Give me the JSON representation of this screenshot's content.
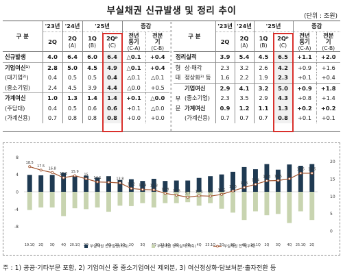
{
  "title": "부실채권 신규발생 및 정리 추이",
  "unit": "(단위 : 조원)",
  "left_table": {
    "gubun": "구 분",
    "years": [
      "'23년",
      "'24년",
      "'25년"
    ],
    "change_header": "증감",
    "cols": [
      {
        "q": "2Q",
        "tag": ""
      },
      {
        "q": "2Q",
        "tag": "(A)"
      },
      {
        "q": "1Q",
        "tag": "(B)"
      },
      {
        "q": "2Qᵖ",
        "tag": "(C)"
      },
      {
        "q": "전년 동기",
        "tag": "(C-A)"
      },
      {
        "q": "전분기",
        "tag": "(C-B)"
      }
    ],
    "rows": [
      {
        "label": "신규발생",
        "bold": true,
        "values": [
          "4.0",
          "6.4",
          "6.0",
          "6.4",
          "△0.1",
          "+0.4"
        ]
      },
      {
        "label": "기업여신¹⁾",
        "bold": true,
        "values": [
          "2.8",
          "5.0",
          "4.5",
          "4.9",
          "△0.1",
          "+0.4"
        ]
      },
      {
        "label": "(대기업²⁾)",
        "bold": false,
        "values": [
          "0.4",
          "0.5",
          "0.5",
          "0.4",
          "△0.1",
          "△0.1"
        ]
      },
      {
        "label": "(중소기업)",
        "bold": false,
        "values": [
          "2.4",
          "4.5",
          "3.9",
          "4.4",
          "△0.0",
          "+0.5"
        ]
      },
      {
        "label": "가계여신",
        "bold": true,
        "values": [
          "1.0",
          "1.3",
          "1.4",
          "1.4",
          "+0.1",
          "△0.0"
        ]
      },
      {
        "label": "(주담대)",
        "bold": false,
        "values": [
          "0.4",
          "0.5",
          "0.6",
          "0.6",
          "+0.1",
          "△0.0"
        ]
      },
      {
        "label": "(가계신용)",
        "bold": false,
        "values": [
          "0.7",
          "0.8",
          "0.8",
          "0.8",
          "+0.0",
          "+0.0"
        ]
      }
    ]
  },
  "right_table": {
    "gubun": "구 분",
    "years": [
      "'23년",
      "'24년",
      "'25년"
    ],
    "change_header": "증감",
    "cols": [
      {
        "q": "2Q",
        "tag": ""
      },
      {
        "q": "2Q",
        "tag": "(A)"
      },
      {
        "q": "1Q",
        "tag": "(B)"
      },
      {
        "q": "2Qᵖ",
        "tag": "(C)"
      },
      {
        "q": "전년 동기",
        "tag": "(C-A)"
      },
      {
        "q": "전분기",
        "tag": "(C-B)"
      }
    ],
    "side_top": [
      "형",
      "태"
    ],
    "side_bottom": [
      "부",
      "문"
    ],
    "rows": [
      {
        "label": "정리실적",
        "bold": true,
        "values": [
          "3.9",
          "5.4",
          "4.5",
          "6.5",
          "+1.1",
          "+2.0"
        ]
      },
      {
        "label": "상·매각",
        "bold": false,
        "values": [
          "2.3",
          "3.2",
          "2.6",
          "4.2",
          "+0.9",
          "+1.6"
        ]
      },
      {
        "label": "정상화³⁾ 등",
        "bold": false,
        "values": [
          "1.6",
          "2.2",
          "1.9",
          "2.3",
          "+0.1",
          "+0.4"
        ]
      },
      {
        "label": "기업여신",
        "bold": true,
        "values": [
          "2.9",
          "4.1",
          "3.2",
          "5.0",
          "+0.9",
          "+1.8"
        ]
      },
      {
        "label": "(중소기업)",
        "bold": false,
        "values": [
          "2.3",
          "3.5",
          "2.9",
          "4.3",
          "+0.8",
          "+1.4"
        ]
      },
      {
        "label": "가계여신",
        "bold": true,
        "values": [
          "0.9",
          "1.2",
          "1.1",
          "1.3",
          "+0.2",
          "+0.2"
        ]
      },
      {
        "label": "(가계신용)",
        "bold": false,
        "values": [
          "0.7",
          "0.7",
          "0.7",
          "0.8",
          "+0.1",
          "+0.1"
        ]
      }
    ]
  },
  "chart_data": {
    "type": "bar",
    "categories": [
      "19.1Q",
      "2Q",
      "3Q",
      "4Q",
      "20.1Q",
      "2Q",
      "3Q",
      "4Q",
      "21.1Q",
      "2Q",
      "3Q",
      "4Q",
      "22.1Q",
      "2Q",
      "3Q",
      "4Q",
      "23.1Q",
      "2Q",
      "3Q",
      "4Q",
      "24.1Q",
      "2Q",
      "3Q",
      "4Q",
      "25.1Q",
      "2Q"
    ],
    "series": [
      {
        "name": "부실채권 신규발생(좌축)",
        "kind": "bar",
        "color": "#1f3a52",
        "values": [
          3.9,
          3.8,
          3.9,
          4.4,
          3.6,
          3.7,
          3.3,
          3.6,
          2.7,
          2.9,
          2.5,
          3.0,
          2.5,
          2.6,
          2.6,
          3.2,
          3.6,
          4.0,
          4.6,
          5.7,
          5.2,
          6.4,
          5.1,
          6.3,
          6.0,
          6.4
        ]
      },
      {
        "name": "부실채권 정리실적(좌축)",
        "kind": "bar",
        "color": "#c8d4b0",
        "values": [
          -4.2,
          -3.6,
          -3.6,
          -5.6,
          -3.8,
          -4.0,
          -3.6,
          -4.6,
          -3.2,
          -3.3,
          -2.6,
          -3.6,
          -2.6,
          -2.6,
          -2.4,
          -3.2,
          -2.6,
          -3.9,
          -4.8,
          -6.5,
          -4.5,
          -5.4,
          -5.1,
          -7.2,
          -4.5,
          -6.5
        ]
      },
      {
        "name": "부실채권 잔액(우축)",
        "kind": "line",
        "color": "#a0522d",
        "values": [
          18.5,
          17.5,
          16.8,
          15.3,
          15.9,
          15.0,
          14.1,
          14.0,
          13.8,
          12.2,
          11.9,
          11.8,
          10.8,
          10.3,
          9.7,
          10.1,
          10.0,
          10.5,
          11.5,
          12.5,
          13.4,
          14.4,
          14.5,
          15.0,
          16.6,
          16.6
        ]
      }
    ],
    "yleft_ticks": [
      8,
      4,
      0,
      -4,
      -8
    ],
    "yright_ticks": [
      20,
      15,
      10,
      5,
      0
    ],
    "ylim_left": [
      -9,
      9
    ],
    "ylim_right": [
      0,
      22.5
    ]
  },
  "note": "주 : 1) 공공·기타부문 포함, 2) 기업여신 중 중소기업여신 제외분, 3) 여신정상화·담보처분·출자전환 등"
}
